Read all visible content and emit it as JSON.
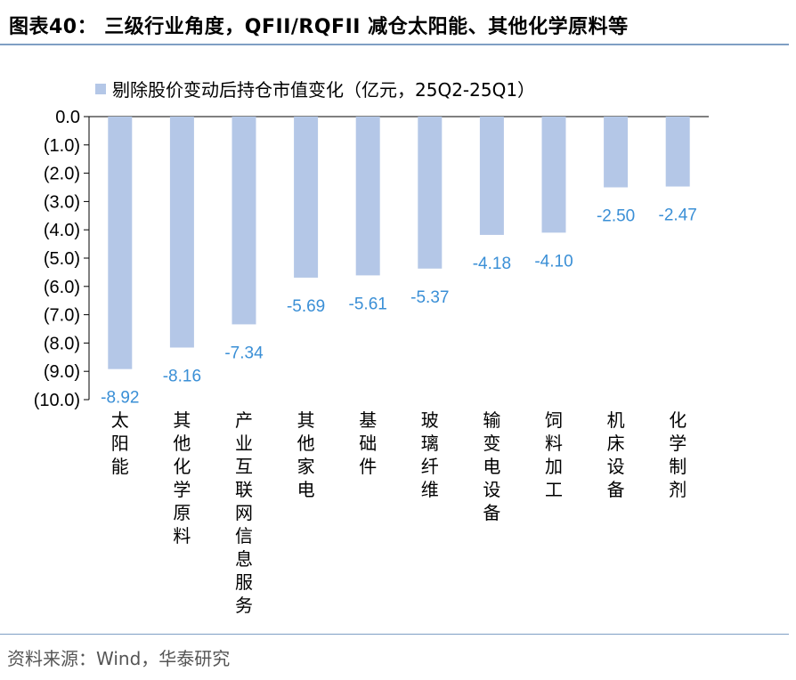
{
  "header": {
    "title": "图表40：  三级行业角度，QFII/RQFII 减仓太阳能、其他化学原料等"
  },
  "footer": {
    "source": "资料来源：Wind，华泰研究"
  },
  "colors": {
    "bar": "#b4c7e7",
    "data_label": "#3a8fd6",
    "rule": "#7f9fc4"
  },
  "chart_data": {
    "type": "bar",
    "categories": [
      "太阳能",
      "其他化学原料",
      "产业互联网信息服务",
      "其他家电",
      "基础件",
      "玻璃纤维",
      "输变电设备",
      "饲料加工",
      "机床设备",
      "化学制剂"
    ],
    "series": [
      {
        "name": "剔除股价变动后持仓市值变化（亿元，25Q2-25Q1）",
        "values": [
          -8.92,
          -8.16,
          -7.34,
          -5.69,
          -5.61,
          -5.37,
          -4.18,
          -4.1,
          -2.5,
          -2.47
        ],
        "labels": [
          "-8.92",
          "-8.16",
          "-7.34",
          "-5.69",
          "-5.61",
          "-5.37",
          "-4.18",
          "-4.10",
          "-2.50",
          "-2.47"
        ]
      }
    ],
    "ylim": [
      -10,
      0
    ],
    "yticks": [
      0,
      -1,
      -2,
      -3,
      -4,
      -5,
      -6,
      -7,
      -8,
      -9,
      -10
    ],
    "ytick_labels": [
      "0.0",
      "(1.0)",
      "(2.0)",
      "(3.0)",
      "(4.0)",
      "(5.0)",
      "(6.0)",
      "(7.0)",
      "(8.0)",
      "(9.0)",
      "(10.0)"
    ],
    "grid": false,
    "legend_position": "top-left"
  }
}
